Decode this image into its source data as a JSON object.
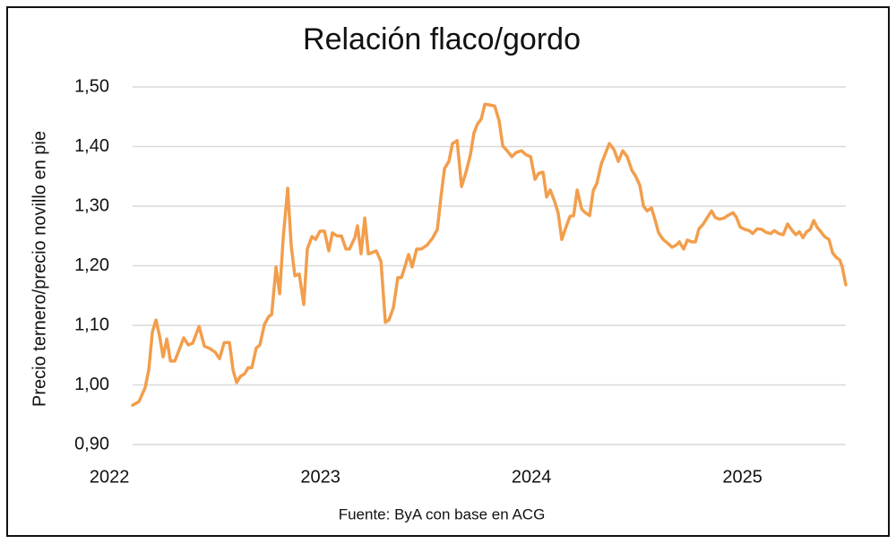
{
  "chart_data": {
    "type": "line",
    "title": "Relación flaco/gordo",
    "y_label": "Precio ternero/precio novillo en pie",
    "source": "Fuente: ByA con base en ACG",
    "color": "#f29e4c",
    "grid": true,
    "xlim": [
      2022.11,
      2025.49
    ],
    "xticks": [
      2022,
      2023,
      2024,
      2025
    ],
    "ylim": [
      0.9,
      1.5
    ],
    "yticks": [
      {
        "value": 0.9,
        "label": "0,90"
      },
      {
        "value": 1.0,
        "label": "1,00"
      },
      {
        "value": 1.1,
        "label": "1,10"
      },
      {
        "value": 1.2,
        "label": "1,20"
      },
      {
        "value": 1.3,
        "label": "1,30"
      },
      {
        "value": 1.4,
        "label": "1,40"
      },
      {
        "value": 1.5,
        "label": "1,50"
      }
    ],
    "x": [
      2022.11,
      2022.14,
      2022.17,
      2022.187,
      2022.204,
      2022.221,
      2022.238,
      2022.255,
      2022.272,
      2022.289,
      2022.31,
      2022.331,
      2022.352,
      2022.374,
      2022.395,
      2022.425,
      2022.45,
      2022.476,
      2022.501,
      2022.522,
      2022.544,
      2022.569,
      2022.586,
      2022.603,
      2022.62,
      2022.641,
      2022.658,
      2022.675,
      2022.696,
      2022.713,
      2022.735,
      2022.756,
      2022.769,
      2022.79,
      2022.807,
      2022.824,
      2022.845,
      2022.862,
      2022.879,
      2022.9,
      2022.921,
      2022.938,
      2022.96,
      2022.977,
      2022.998,
      2023.019,
      2023.04,
      2023.057,
      2023.079,
      2023.1,
      2023.121,
      2023.138,
      2023.163,
      2023.176,
      2023.193,
      2023.21,
      2023.227,
      2023.244,
      2023.265,
      2023.287,
      2023.308,
      2023.325,
      2023.346,
      2023.367,
      2023.384,
      2023.401,
      2023.418,
      2023.435,
      2023.456,
      2023.478,
      2023.507,
      2023.533,
      2023.554,
      2023.571,
      2023.588,
      2023.609,
      2023.626,
      2023.648,
      2023.669,
      2023.69,
      2023.711,
      2023.728,
      2023.745,
      2023.762,
      2023.779,
      2023.8,
      2023.826,
      2023.847,
      2023.864,
      2023.885,
      2023.907,
      2023.928,
      2023.953,
      2023.975,
      2023.996,
      2024.017,
      2024.034,
      2024.055,
      2024.072,
      2024.089,
      2024.11,
      2024.127,
      2024.144,
      2024.161,
      2024.183,
      2024.2,
      2024.217,
      2024.238,
      2024.255,
      2024.276,
      2024.293,
      2024.31,
      2024.331,
      2024.348,
      2024.369,
      2024.391,
      2024.412,
      2024.433,
      2024.454,
      2024.476,
      2024.493,
      2024.514,
      2024.531,
      2024.548,
      2024.569,
      2024.586,
      2024.603,
      2024.624,
      2024.645,
      2024.667,
      2024.688,
      2024.701,
      2024.722,
      2024.739,
      2024.76,
      2024.777,
      2024.794,
      2024.815,
      2024.832,
      2024.854,
      2024.871,
      2024.892,
      2024.913,
      2024.93,
      2024.955,
      2024.972,
      2024.989,
      2025.011,
      2025.032,
      2025.049,
      2025.07,
      2025.091,
      2025.113,
      2025.134,
      2025.151,
      2025.172,
      2025.193,
      2025.214,
      2025.236,
      2025.253,
      2025.27,
      2025.287,
      2025.304,
      2025.321,
      2025.338,
      2025.355,
      2025.372,
      2025.389,
      2025.41,
      2025.427,
      2025.444,
      2025.461,
      2025.473,
      2025.49
    ],
    "values": [
      0.966,
      0.972,
      0.996,
      1.026,
      1.089,
      1.109,
      1.082,
      1.047,
      1.077,
      1.04,
      1.04,
      1.059,
      1.079,
      1.067,
      1.07,
      1.098,
      1.065,
      1.061,
      1.055,
      1.044,
      1.071,
      1.071,
      1.025,
      1.004,
      1.014,
      1.019,
      1.029,
      1.029,
      1.062,
      1.067,
      1.102,
      1.115,
      1.118,
      1.198,
      1.153,
      1.247,
      1.33,
      1.232,
      1.183,
      1.186,
      1.135,
      1.228,
      1.249,
      1.244,
      1.258,
      1.258,
      1.225,
      1.255,
      1.25,
      1.25,
      1.228,
      1.228,
      1.247,
      1.267,
      1.22,
      1.28,
      1.22,
      1.222,
      1.225,
      1.207,
      1.105,
      1.109,
      1.13,
      1.18,
      1.18,
      1.199,
      1.219,
      1.198,
      1.228,
      1.228,
      1.235,
      1.247,
      1.261,
      1.315,
      1.363,
      1.375,
      1.405,
      1.41,
      1.333,
      1.357,
      1.386,
      1.423,
      1.438,
      1.446,
      1.471,
      1.47,
      1.468,
      1.443,
      1.401,
      1.393,
      1.383,
      1.39,
      1.393,
      1.386,
      1.383,
      1.345,
      1.355,
      1.357,
      1.315,
      1.327,
      1.308,
      1.288,
      1.244,
      1.262,
      1.283,
      1.284,
      1.327,
      1.295,
      1.289,
      1.284,
      1.326,
      1.338,
      1.371,
      1.386,
      1.405,
      1.395,
      1.375,
      1.393,
      1.383,
      1.36,
      1.351,
      1.335,
      1.3,
      1.292,
      1.297,
      1.277,
      1.255,
      1.244,
      1.238,
      1.231,
      1.235,
      1.24,
      1.228,
      1.243,
      1.24,
      1.24,
      1.262,
      1.27,
      1.28,
      1.292,
      1.281,
      1.278,
      1.28,
      1.284,
      1.289,
      1.281,
      1.265,
      1.261,
      1.259,
      1.254,
      1.262,
      1.261,
      1.256,
      1.254,
      1.259,
      1.254,
      1.252,
      1.27,
      1.259,
      1.252,
      1.257,
      1.247,
      1.257,
      1.261,
      1.276,
      1.264,
      1.257,
      1.249,
      1.244,
      1.222,
      1.214,
      1.21,
      1.198,
      1.168
    ]
  }
}
